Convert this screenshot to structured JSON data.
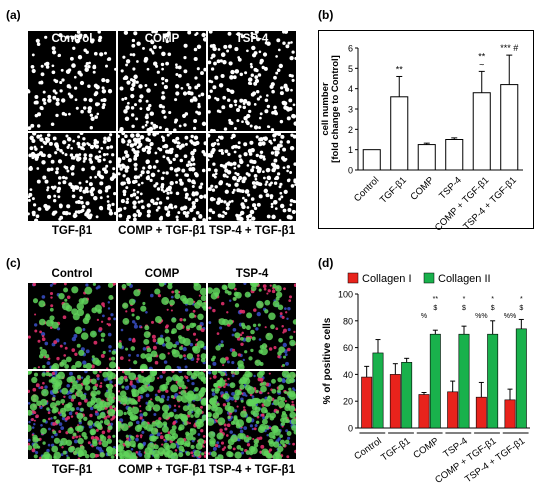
{
  "panels": {
    "a": "(a)",
    "b": "(b)",
    "c": "(c)",
    "d": "(d)"
  },
  "micrographs": {
    "top_titles": [
      "Control",
      "COMP",
      "TSP-4"
    ],
    "bottom_titles": [
      "TGF-β1",
      "COMP + TGF-β1",
      "TSP-4 + TGF-β1"
    ],
    "colors": {
      "nuclei": "#ffffff",
      "green": "#5fd35a",
      "red": "#e0306a",
      "blue": "#3a50c8"
    }
  },
  "chart_data": [
    {
      "type": "bar",
      "panel": "(b)",
      "categories": [
        "Control",
        "TGF-β1",
        "COMP",
        "TSP-4",
        "COMP + TGF-β1",
        "TSP-4 + TGF-β1"
      ],
      "values": [
        1.0,
        3.6,
        1.25,
        1.5,
        3.8,
        4.2
      ],
      "errors": [
        0,
        1.0,
        0.07,
        0.08,
        1.05,
        1.45
      ],
      "ylabel": "cell number\n[fold change to Control]",
      "ylabel_lines": [
        "cell number",
        "[fold change to Control]"
      ],
      "ylim": [
        0,
        6
      ],
      "yticks": [
        0,
        1,
        2,
        3,
        4,
        5,
        6
      ],
      "annotations": [
        "",
        "**",
        "",
        "",
        "**\n~",
        "*** #"
      ],
      "annotation_lines": [
        [],
        [
          "**"
        ],
        [],
        [],
        [
          "**",
          "~"
        ],
        [
          "*** #"
        ]
      ],
      "bar_color": "#ffffff",
      "grid": false
    },
    {
      "type": "bar",
      "panel": "(d)",
      "categories": [
        "Control",
        "TGF-β1",
        "COMP",
        "TSP-4",
        "COMP + TGF-β1",
        "TSP-4 + TGF-β1"
      ],
      "series": [
        {
          "name": "Collagen I",
          "color": "#e8231c",
          "values": [
            38,
            40,
            25,
            27,
            23,
            21
          ],
          "errors": [
            8,
            8,
            1.5,
            8,
            11,
            8
          ]
        },
        {
          "name": "Collagen II",
          "color": "#19b14c",
          "values": [
            56,
            49,
            70,
            70,
            70,
            74
          ],
          "errors": [
            10,
            3,
            3,
            6,
            10,
            7
          ]
        }
      ],
      "ylabel": "% of positive cells",
      "ylim": [
        0,
        100
      ],
      "yticks": [
        0,
        20,
        40,
        60,
        80,
        100
      ],
      "annotations": [
        {
          "collagen1": [],
          "collagen2": []
        },
        {
          "collagen1": [],
          "collagen2": []
        },
        {
          "collagen1": [
            "%"
          ],
          "collagen2": [
            "**",
            "$"
          ]
        },
        {
          "collagen1": [],
          "collagen2": [
            "*",
            "$"
          ]
        },
        {
          "collagen1": [
            "%%"
          ],
          "collagen2": [
            "*",
            "$"
          ]
        },
        {
          "collagen1": [
            "%%"
          ],
          "collagen2": [
            "*",
            "$"
          ]
        }
      ],
      "legend": "top",
      "grid": false
    }
  ]
}
